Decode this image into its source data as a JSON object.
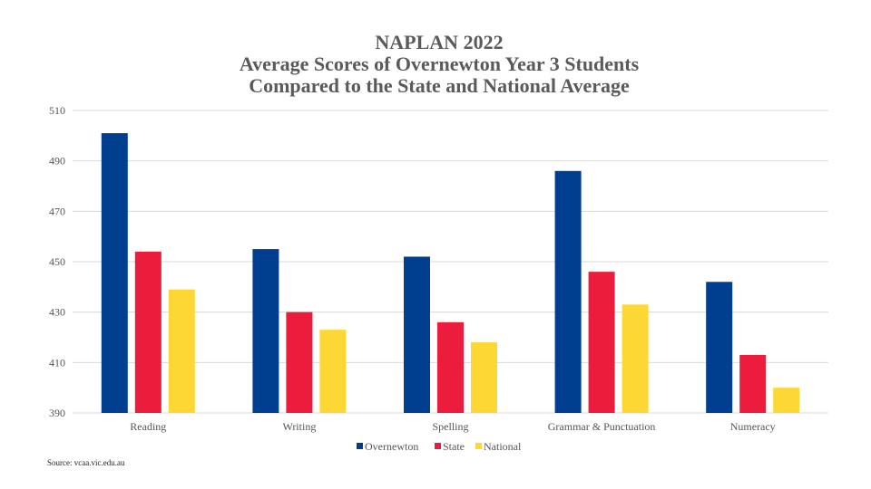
{
  "chart_data": {
    "type": "bar",
    "title": [
      "NAPLAN 2022",
      "Average Scores of Overnewton Year 3 Students",
      "Compared to the State and National Average"
    ],
    "categories": [
      "Reading",
      "Writing",
      "Spelling",
      "Grammar & Punctuation",
      "Numeracy"
    ],
    "series": [
      {
        "name": "Overnewton",
        "color": "#003f8f",
        "values": [
          501,
          455,
          452,
          486,
          442
        ]
      },
      {
        "name": "State",
        "color": "#ec1c3c",
        "values": [
          454,
          430,
          426,
          446,
          413
        ]
      },
      {
        "name": "National",
        "color": "#fdd835",
        "values": [
          439,
          423,
          418,
          433,
          400
        ]
      }
    ],
    "ylim": [
      390,
      510
    ],
    "yticks": [
      390,
      410,
      430,
      450,
      470,
      490,
      510
    ],
    "grid": true,
    "legend_position": "bottom",
    "xlabel": "",
    "ylabel": ""
  },
  "source": "Source: vcaa.vic.edu.au"
}
